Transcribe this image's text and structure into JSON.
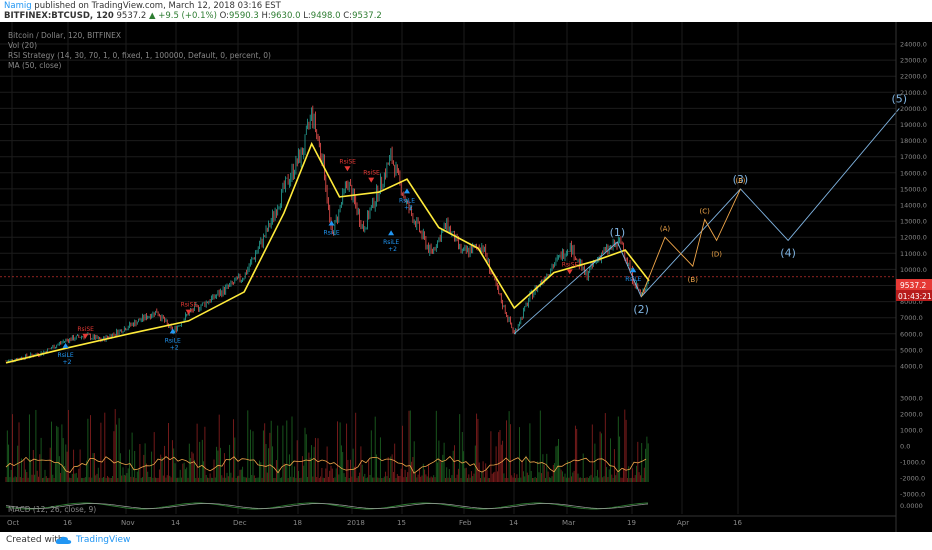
{
  "header": {
    "author": "Namig",
    "published": " published on TradingView.com, March 12, 2018 03:16 EST",
    "symbol": "BITFINEX:BTCUSD, 120",
    "price": "9537.2",
    "change": "▲ +9.5 (+0.1%)",
    "o_label": "O:",
    "o": "9590.3",
    "h_label": "H:",
    "h": "9630.0",
    "l_label": "L:",
    "l": "9498.0",
    "c_label": "C:",
    "c": "9537.2"
  },
  "legend": {
    "title": "Bitcoin / Dollar, 120, BITFINEX",
    "vol": "Vol (20)",
    "rsi": "RSI Strategy (14, 30, 70, 1, 0, fixed, 1, 100000, Default, 0, percent, 0)",
    "ma": "MA (50, close)",
    "macd": "MACD (12, 26, close, 9)"
  },
  "footer": {
    "created": "Created with",
    "brand": "TradingView"
  },
  "colors": {
    "bg": "#000000",
    "ma": "#ffeb3b",
    "wave_primary": "#7fb3e0",
    "wave_sub": "#f0a64a",
    "up": "#26a69a",
    "down": "#ef5350",
    "price_tag": "#e53935"
  },
  "chart_data": {
    "type": "line",
    "title": "Bitcoin / Dollar, 120, BITFINEX",
    "y_axis": [
      "24000.0",
      "23000.0",
      "22000.0",
      "21000.0",
      "20000.0",
      "19000.0",
      "18000.0",
      "17000.0",
      "16000.0",
      "15000.0",
      "14000.0",
      "13000.0",
      "12000.0",
      "11000.0",
      "10000.0",
      "9000.0",
      "8000.0",
      "7000.0",
      "6000.0",
      "5000.0",
      "4000.0"
    ],
    "ylim": [
      4000,
      24000
    ],
    "x_axis": [
      "Oct",
      "16",
      "Nov",
      "14",
      "Dec",
      "18",
      "2018",
      "15",
      "Feb",
      "14",
      "Mar",
      "19",
      "Apr",
      "16"
    ],
    "price": [
      {
        "date": "2017-10-01",
        "y": 4300
      },
      {
        "date": "2017-10-10",
        "y": 4800
      },
      {
        "date": "2017-10-16",
        "y": 5600
      },
      {
        "date": "2017-10-21",
        "y": 5900
      },
      {
        "date": "2017-10-25",
        "y": 5600
      },
      {
        "date": "2017-11-01",
        "y": 6500
      },
      {
        "date": "2017-11-08",
        "y": 7400
      },
      {
        "date": "2017-11-12",
        "y": 6100
      },
      {
        "date": "2017-11-16",
        "y": 7300
      },
      {
        "date": "2017-11-22",
        "y": 8200
      },
      {
        "date": "2017-11-30",
        "y": 9600
      },
      {
        "date": "2017-12-06",
        "y": 12500
      },
      {
        "date": "2017-12-10",
        "y": 15000
      },
      {
        "date": "2017-12-15",
        "y": 17500
      },
      {
        "date": "2017-12-17",
        "y": 19800
      },
      {
        "date": "2017-12-20",
        "y": 16500
      },
      {
        "date": "2017-12-22",
        "y": 12000
      },
      {
        "date": "2017-12-26",
        "y": 15500
      },
      {
        "date": "2017-12-30",
        "y": 12500
      },
      {
        "date": "2018-01-06",
        "y": 17000
      },
      {
        "date": "2018-01-10",
        "y": 14000
      },
      {
        "date": "2018-01-16",
        "y": 11000
      },
      {
        "date": "2018-01-20",
        "y": 12800
      },
      {
        "date": "2018-01-24",
        "y": 11000
      },
      {
        "date": "2018-01-29",
        "y": 11500
      },
      {
        "date": "2018-02-02",
        "y": 8500
      },
      {
        "date": "2018-02-06",
        "y": 6000
      },
      {
        "date": "2018-02-10",
        "y": 8300
      },
      {
        "date": "2018-02-15",
        "y": 10000
      },
      {
        "date": "2018-02-20",
        "y": 11500
      },
      {
        "date": "2018-02-24",
        "y": 9600
      },
      {
        "date": "2018-02-28",
        "y": 11000
      },
      {
        "date": "2018-03-05",
        "y": 11700
      },
      {
        "date": "2018-03-08",
        "y": 9400
      },
      {
        "date": "2018-03-10",
        "y": 8300
      },
      {
        "date": "2018-03-12",
        "y": 9537
      }
    ],
    "ma50": [
      {
        "date": "2017-10-01",
        "y": 4200
      },
      {
        "date": "2017-10-16",
        "y": 5100
      },
      {
        "date": "2017-11-01",
        "y": 6000
      },
      {
        "date": "2017-11-16",
        "y": 6800
      },
      {
        "date": "2017-11-30",
        "y": 8600
      },
      {
        "date": "2017-12-10",
        "y": 13500
      },
      {
        "date": "2017-12-17",
        "y": 17800
      },
      {
        "date": "2017-12-24",
        "y": 14500
      },
      {
        "date": "2018-01-03",
        "y": 14800
      },
      {
        "date": "2018-01-10",
        "y": 15600
      },
      {
        "date": "2018-01-18",
        "y": 12600
      },
      {
        "date": "2018-01-28",
        "y": 11300
      },
      {
        "date": "2018-02-06",
        "y": 7600
      },
      {
        "date": "2018-02-16",
        "y": 9800
      },
      {
        "date": "2018-02-26",
        "y": 10500
      },
      {
        "date": "2018-03-06",
        "y": 11200
      },
      {
        "date": "2018-03-12",
        "y": 9300
      }
    ],
    "wave_primary": [
      {
        "label": "",
        "date": "2018-02-06",
        "y": 6000
      },
      {
        "label": "(1)",
        "date": "2018-03-04",
        "y": 11700
      },
      {
        "label": "(2)",
        "date": "2018-03-10",
        "y": 8300
      },
      {
        "label": "(3)",
        "date": "2018-04-04",
        "y": 15000
      },
      {
        "label": "(4)",
        "date": "2018-04-16",
        "y": 11800
      },
      {
        "label": "(5)",
        "date": "2018-05-14",
        "y": 20000
      }
    ],
    "wave_sub": [
      {
        "label": "",
        "date": "2018-03-10",
        "y": 8300
      },
      {
        "label": "(A)",
        "date": "2018-03-16",
        "y": 12000
      },
      {
        "label": "(B)",
        "date": "2018-03-23",
        "y": 10200
      },
      {
        "label": "(C)",
        "date": "2018-03-26",
        "y": 13100
      },
      {
        "label": "(D)",
        "date": "2018-03-29",
        "y": 11800
      },
      {
        "label": "(E)",
        "date": "2018-04-04",
        "y": 15000
      }
    ],
    "strategy_signals": [
      {
        "date": "2017-10-21",
        "y": 6500,
        "type": "RsiSE",
        "dir": "short"
      },
      {
        "date": "2017-10-16",
        "y": 5000,
        "type": "RsiLE",
        "qty": "+2",
        "dir": "long"
      },
      {
        "date": "2017-11-12",
        "y": 5900,
        "type": "RsiLE",
        "qty": "+2",
        "dir": "long"
      },
      {
        "date": "2017-11-16",
        "y": 8000,
        "type": "RsiSE",
        "dir": "short"
      },
      {
        "date": "2017-12-22",
        "y": 12600,
        "type": "RsiLE",
        "dir": "long"
      },
      {
        "date": "2017-12-26",
        "y": 16900,
        "type": "RsiSE",
        "dir": "short"
      },
      {
        "date": "2018-01-01",
        "y": 16200,
        "type": "RsiSE",
        "dir": "short"
      },
      {
        "date": "2018-01-06",
        "y": 12000,
        "type": "RsiLE",
        "qty": "+2",
        "dir": "long"
      },
      {
        "date": "2018-01-10",
        "y": 14600,
        "type": "RsiLE",
        "qty": "+2",
        "dir": "long"
      },
      {
        "date": "2018-02-20",
        "y": 10500,
        "type": "RsiSE",
        "dir": "short"
      },
      {
        "date": "2018-03-08",
        "y": 9700,
        "type": "RsiLE",
        "dir": "long"
      }
    ],
    "current_price": "9537.2",
    "countdown": "01:43:21",
    "volume_axis": [
      "3000.0",
      "2000.0",
      "1000.0",
      "0.0",
      "-1000.0",
      "-2000.0",
      "-3000.0"
    ],
    "macd_axis": [
      "0.0000"
    ],
    "grid": true
  }
}
